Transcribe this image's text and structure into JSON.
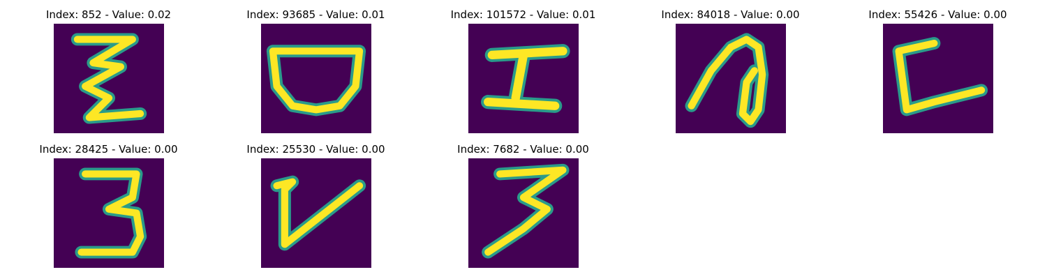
{
  "figure": {
    "colors": {
      "background": "#440154",
      "glow": "#2a9b8a",
      "stroke": "#fde725",
      "page": "#ffffff"
    },
    "panels": [
      {
        "title": "Index: 852 - Value: 0.02",
        "image_icon": "handwritten-glyph-z-loops"
      },
      {
        "title": "Index: 93685 - Value: 0.01",
        "image_icon": "handwritten-glyph-bowl"
      },
      {
        "title": "Index: 101572 - Value: 0.01",
        "image_icon": "handwritten-glyph-i-beam"
      },
      {
        "title": "Index: 84018 - Value: 0.00",
        "image_icon": "handwritten-glyph-loop"
      },
      {
        "title": "Index: 55426 - Value: 0.00",
        "image_icon": "handwritten-glyph-c"
      },
      {
        "title": "Index: 28425 - Value: 0.00",
        "image_icon": "handwritten-glyph-3"
      },
      {
        "title": "Index: 25530 - Value: 0.00",
        "image_icon": "handwritten-glyph-v"
      },
      {
        "title": "Index: 7682 - Value: 0.00",
        "image_icon": "handwritten-glyph-3-slanted"
      }
    ]
  }
}
